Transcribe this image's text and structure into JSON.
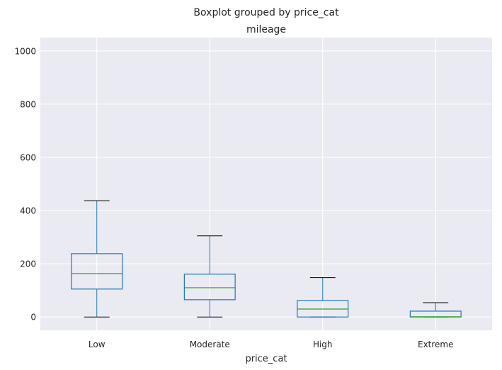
{
  "chart_data": {
    "type": "box",
    "suptitle": "Boxplot grouped by price_cat",
    "title": "mileage",
    "xlabel": "price_cat",
    "ylabel": "",
    "ylim": [
      -50,
      1050
    ],
    "yticks": [
      0,
      200,
      400,
      600,
      800,
      1000
    ],
    "categories": [
      "Low",
      "Moderate",
      "High",
      "Extreme"
    ],
    "boxes": [
      {
        "category": "Low",
        "whisker_low": 0,
        "q1": 105,
        "median": 163,
        "q3": 238,
        "whisker_high": 437
      },
      {
        "category": "Moderate",
        "whisker_low": 0,
        "q1": 65,
        "median": 110,
        "q3": 161,
        "whisker_high": 305
      },
      {
        "category": "High",
        "whisker_low": 0,
        "q1": 0,
        "median": 30,
        "q3": 62,
        "whisker_high": 148
      },
      {
        "category": "Extreme",
        "whisker_low": 0,
        "q1": 0,
        "median": 1,
        "q3": 22,
        "whisker_high": 54
      }
    ],
    "grid": true,
    "colors": {
      "background": "#EAEAF2",
      "grid": "#FFFFFF",
      "box": "#1F77B4",
      "median": "#2CA02C",
      "cap": "#000000"
    }
  }
}
